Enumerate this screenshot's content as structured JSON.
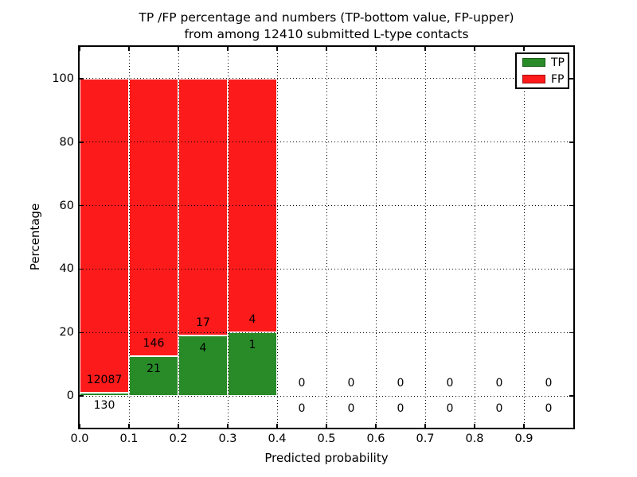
{
  "chart_data": {
    "type": "bar",
    "stacked": true,
    "title_line1": "TP /FP percentage and numbers (TP-bottom value, FP-upper)",
    "title_line2": "from among 12410 submitted L-type contacts",
    "xlabel": "Predicted probability",
    "ylabel": "Percentage",
    "total_contacts": 12410,
    "xlim": [
      0.0,
      1.0
    ],
    "ylim": [
      -10,
      110
    ],
    "grid": "dotted",
    "legend_position": "upper right",
    "xticks": [
      {
        "value": 0.0,
        "label": "0.0"
      },
      {
        "value": 0.1,
        "label": "0.1"
      },
      {
        "value": 0.2,
        "label": "0.2"
      },
      {
        "value": 0.3,
        "label": "0.3"
      },
      {
        "value": 0.4,
        "label": "0.4"
      },
      {
        "value": 0.5,
        "label": "0.5"
      },
      {
        "value": 0.6,
        "label": "0.6"
      },
      {
        "value": 0.7,
        "label": "0.7"
      },
      {
        "value": 0.8,
        "label": "0.8"
      },
      {
        "value": 0.9,
        "label": "0.9"
      }
    ],
    "yticks": [
      {
        "value": 0,
        "label": "0"
      },
      {
        "value": 20,
        "label": "20"
      },
      {
        "value": 40,
        "label": "40"
      },
      {
        "value": 60,
        "label": "60"
      },
      {
        "value": 80,
        "label": "80"
      },
      {
        "value": 100,
        "label": "100"
      }
    ],
    "bins": [
      {
        "x0": 0.0,
        "x1": 0.1,
        "tp": 130,
        "fp": 12087
      },
      {
        "x0": 0.1,
        "x1": 0.2,
        "tp": 21,
        "fp": 146
      },
      {
        "x0": 0.2,
        "x1": 0.3,
        "tp": 4,
        "fp": 17
      },
      {
        "x0": 0.3,
        "x1": 0.4,
        "tp": 1,
        "fp": 4
      },
      {
        "x0": 0.4,
        "x1": 0.5,
        "tp": 0,
        "fp": 0
      },
      {
        "x0": 0.5,
        "x1": 0.6,
        "tp": 0,
        "fp": 0
      },
      {
        "x0": 0.6,
        "x1": 0.7,
        "tp": 0,
        "fp": 0
      },
      {
        "x0": 0.7,
        "x1": 0.8,
        "tp": 0,
        "fp": 0
      },
      {
        "x0": 0.8,
        "x1": 0.9,
        "tp": 0,
        "fp": 0
      },
      {
        "x0": 0.9,
        "x1": 1.0,
        "tp": 0,
        "fp": 0
      }
    ],
    "legend": [
      {
        "label": "TP",
        "color": "#288b28"
      },
      {
        "label": "FP",
        "color": "#fc1a1a"
      }
    ],
    "colors": {
      "tp": "#288b28",
      "fp": "#fc1a1a",
      "grid": "#000000",
      "text": "#000000",
      "background": "#ffffff"
    }
  }
}
